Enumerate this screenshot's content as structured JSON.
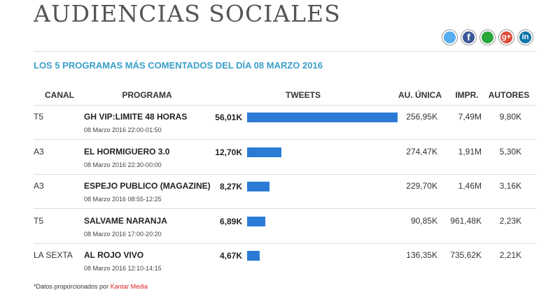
{
  "header": {
    "title": "AUDIENCIAS SOCIALES",
    "share": {
      "facebook": "f",
      "googleplus": "g+",
      "linkedin": "in"
    }
  },
  "subtitle": "LOS 5 PROGRAMAS MÁS COMENTADOS DEL DÍA 08 MARZO 2016",
  "table": {
    "columns": [
      "CANAL",
      "PROGRAMA",
      "TWEETS",
      "AU. ÚNICA",
      "IMPR.",
      "AUTORES"
    ],
    "rows": [
      {
        "canal": "T5",
        "programa": "GH VIP:LIMITE 48 HORAS",
        "fecha": "08 Marzo 2016 22:00-01:50",
        "tweets": {
          "value": 56010,
          "label": "56,01K"
        },
        "au_unica": "256,95K",
        "impr": "7,49M",
        "autores": "9,80K"
      },
      {
        "canal": "A3",
        "programa": "EL HORMIGUERO 3.0",
        "fecha": "08 Marzo 2016 22:30-00:00",
        "tweets": {
          "value": 12700,
          "label": "12,70K"
        },
        "au_unica": "274,47K",
        "impr": "1,91M",
        "autores": "5,30K"
      },
      {
        "canal": "A3",
        "programa": "ESPEJO PUBLICO (MAGAZINE)",
        "fecha": "08 Marzo 2016 08:55-12:25",
        "tweets": {
          "value": 8270,
          "label": "8,27K"
        },
        "au_unica": "229,70K",
        "impr": "1,46M",
        "autores": "3,16K"
      },
      {
        "canal": "T5",
        "programa": "SALVAME NARANJA",
        "fecha": "08 Marzo 2016 17:00-20:20",
        "tweets": {
          "value": 6890,
          "label": "6,89K"
        },
        "au_unica": "90,85K",
        "impr": "961,48K",
        "autores": "2,23K"
      },
      {
        "canal": "LA SEXTA",
        "programa": "AL ROJO VIVO",
        "fecha": "08 Marzo 2016 12:10-14:15",
        "tweets": {
          "value": 4670,
          "label": "4,67K"
        },
        "au_unica": "136,35K",
        "impr": "735,62K",
        "autores": "2,21K"
      }
    ]
  },
  "footnote": {
    "text": "*Datos proporcionados por ",
    "source": "Kantar Media"
  }
}
